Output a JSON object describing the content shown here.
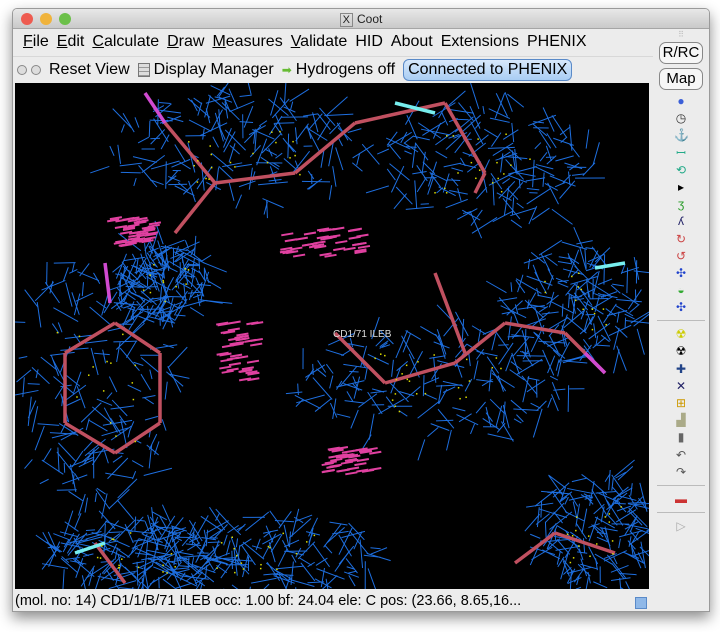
{
  "window": {
    "title": "Coot"
  },
  "menu": [
    {
      "label": "File",
      "u": "F",
      "rest": "ile"
    },
    {
      "label": "Edit",
      "u": "E",
      "rest": "dit"
    },
    {
      "label": "Calculate",
      "u": "C",
      "rest": "alculate"
    },
    {
      "label": "Draw",
      "u": "D",
      "rest": "raw"
    },
    {
      "label": "Measures",
      "u": "M",
      "rest": "easures"
    },
    {
      "label": "Validate",
      "u": "V",
      "rest": "alidate"
    },
    {
      "label": "HID",
      "u": "",
      "rest": "HID"
    },
    {
      "label": "About",
      "u": "",
      "rest": "About"
    },
    {
      "label": "Extensions",
      "u": "",
      "rest": "Extensions"
    },
    {
      "label": "PHENIX",
      "u": "",
      "rest": "PHENIX"
    }
  ],
  "toolbar": {
    "reset_view": "Reset View",
    "display_manager": "Display Manager",
    "hydrogens": "Hydrogens off",
    "phenix": "Connected to PHENIX"
  },
  "rightbar": {
    "rrc": "R/RC",
    "map": "Map"
  },
  "canvas": {
    "atom_label": "CD1/71 ILEB",
    "colors": {
      "mesh": "#1e6fe0",
      "bonds": "#c05060",
      "background": "#000000"
    }
  },
  "status": {
    "text": "(mol. no: 14)  CD1/1/B/71 ILEB occ:  1.00 bf: 24.04 ele:  C pos: (23.66, 8.65,16..."
  }
}
